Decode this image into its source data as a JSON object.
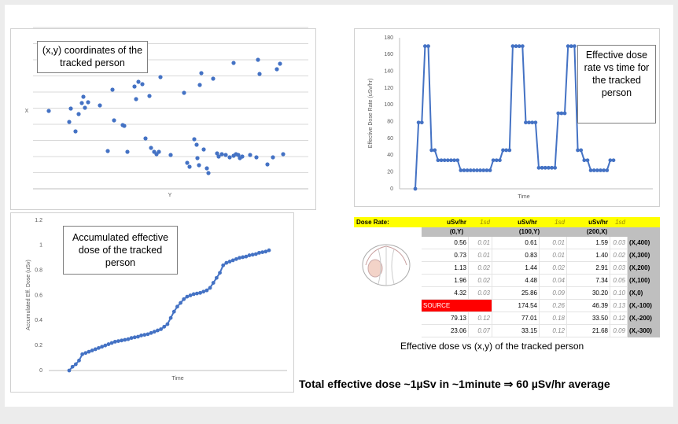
{
  "chart_data": [
    {
      "type": "scatter",
      "annotation": "(x,y) coordinates of the tracked person",
      "x_label": "Y",
      "y_label": "X",
      "color": "#4472c4",
      "xlim": [
        0,
        350
      ],
      "ylim": [
        0,
        205
      ],
      "x": [
        20,
        46,
        48,
        54,
        58,
        62,
        64,
        66,
        70,
        85,
        95,
        101,
        103,
        114,
        116,
        120,
        129,
        131,
        134,
        139,
        143,
        148,
        150,
        154,
        157,
        160,
        162,
        175,
        192,
        196,
        199,
        205,
        208,
        212,
        209,
        211,
        214,
        217,
        221,
        223,
        229,
        234,
        236,
        240,
        245,
        250,
        255,
        255,
        258,
        261,
        263,
        266,
        276,
        284,
        286,
        288,
        298,
        305,
        310,
        314,
        318
      ],
      "values": [
        99,
        85,
        102,
        73,
        95,
        109,
        117,
        103,
        110,
        106,
        48,
        126,
        87,
        81,
        80,
        47,
        130,
        114,
        136,
        133,
        64,
        118,
        52,
        47,
        44,
        47,
        142,
        43,
        122,
        33,
        28,
        63,
        56,
        132,
        39,
        30,
        147,
        50,
        26,
        20,
        140,
        45,
        41,
        44,
        43,
        40,
        160,
        42,
        44,
        43,
        39,
        41,
        43,
        40,
        164,
        146,
        31,
        40,
        152,
        159,
        44
      ]
    },
    {
      "type": "line",
      "annotation": "Effective dose rate vs time for the tracked person",
      "x_label": "Time",
      "y_label": "Effective Dose Rate (uSv/hr)",
      "color": "#4472c4",
      "ylim": [
        0,
        180
      ],
      "yticks": [
        0,
        20,
        40,
        60,
        80,
        100,
        120,
        140,
        160,
        180
      ],
      "grid": false,
      "values": [
        0,
        79,
        79,
        170,
        170,
        46,
        46,
        34,
        34,
        34,
        34,
        34,
        34,
        34,
        22,
        22,
        22,
        22,
        22,
        22,
        22,
        22,
        22,
        22,
        34,
        34,
        34,
        46,
        46,
        46,
        170,
        170,
        170,
        170,
        79,
        79,
        79,
        79,
        25,
        25,
        25,
        25,
        25,
        25,
        90,
        90,
        90,
        170,
        170,
        170,
        46,
        46,
        34,
        34,
        22,
        22,
        22,
        22,
        22,
        22,
        34,
        34
      ]
    },
    {
      "type": "line",
      "annotation": "Accumulated effective dose of the tracked person",
      "x_label": "Time",
      "y_label": "Accumulated Eff. Dose (uSv)",
      "color": "#4472c4",
      "ylim": [
        0,
        1.2
      ],
      "yticks": [
        0,
        0.2,
        0.4,
        0.6,
        0.8,
        1,
        1.2
      ],
      "grid": false,
      "values": [
        0,
        0.03,
        0.05,
        0.08,
        0.13,
        0.14,
        0.15,
        0.16,
        0.17,
        0.18,
        0.19,
        0.2,
        0.21,
        0.22,
        0.23,
        0.235,
        0.24,
        0.245,
        0.25,
        0.26,
        0.265,
        0.27,
        0.28,
        0.285,
        0.29,
        0.3,
        0.31,
        0.32,
        0.33,
        0.35,
        0.37,
        0.42,
        0.47,
        0.51,
        0.54,
        0.57,
        0.59,
        0.6,
        0.61,
        0.615,
        0.62,
        0.63,
        0.64,
        0.66,
        0.7,
        0.74,
        0.78,
        0.84,
        0.86,
        0.87,
        0.88,
        0.89,
        0.9,
        0.905,
        0.91,
        0.92,
        0.925,
        0.93,
        0.94,
        0.945,
        0.95,
        0.96
      ]
    }
  ],
  "table": {
    "header": [
      "Dose Rate:",
      "uSv/hr",
      "1sd",
      "uSv/hr",
      "1sd",
      "uSv/hr",
      "1sd"
    ],
    "columns": [
      "(0,Y)",
      "(100,Y)",
      "(200,X)"
    ],
    "rows": [
      [
        "0.56",
        "0.01",
        "0.61",
        "0.01",
        "1.59",
        "0.03",
        "(X,400)"
      ],
      [
        "0.73",
        "0.01",
        "0.83",
        "0.01",
        "1.40",
        "0.02",
        "(X,300)"
      ],
      [
        "1.13",
        "0.02",
        "1.44",
        "0.02",
        "2.91",
        "0.03",
        "(X,200)"
      ],
      [
        "1.96",
        "0.02",
        "4.48",
        "0.04",
        "7.34",
        "0.05",
        "(X,100)"
      ],
      [
        "4.32",
        "0.03",
        "25.86",
        "0.09",
        "30.20",
        "0.10",
        "(X,0)"
      ],
      [
        "SOURCE",
        "174.54",
        "0.26",
        "46.39",
        "0.13",
        "(X,-100)"
      ],
      [
        "79.13",
        "0.12",
        "77.01",
        "0.18",
        "33.50",
        "0.12",
        "(X,-200)"
      ],
      [
        "23.06",
        "0.07",
        "33.15",
        "0.12",
        "21.68",
        "0.09",
        "(X,-300)"
      ]
    ]
  },
  "table_caption": "Effective dose vs (x,y) of the tracked person",
  "footer": "Total effective dose ~1µSv in ~1minute ⇒ 60 µSv/hr average"
}
